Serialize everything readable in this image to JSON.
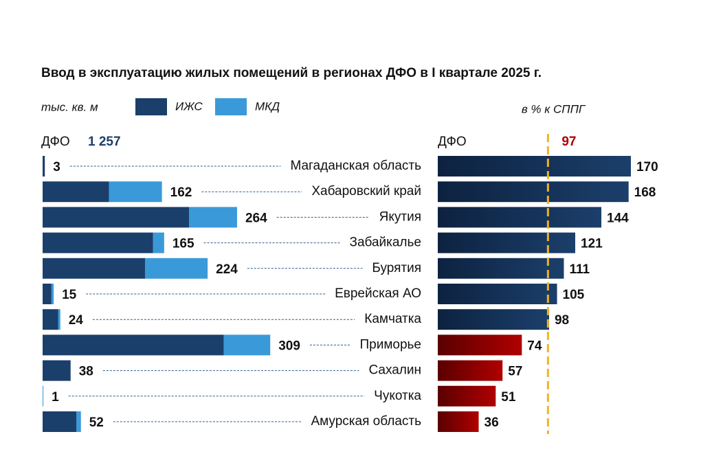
{
  "chart_data": [
    {
      "type": "stacked-bar",
      "title": "Ввод в эксплуатацию жилых помещений в регионах ДФО в I квартале 2025 г.",
      "unit": "тыс. кв. м",
      "total_name": "ДФО",
      "total": {
        "value": 1257,
        "label": "1 257"
      },
      "categories": [
        "Магаданская область",
        "Хабаровский край",
        "Якутия",
        "Забайкалье",
        "Бурятия",
        "Еврейская АО",
        "Камчатка",
        "Приморье",
        "Сахалин",
        "Чукотка",
        "Амурская область"
      ],
      "series": [
        {
          "name": "ИЖС",
          "color": "#1b3f6b",
          "values": [
            3,
            90,
            199,
            150,
            139,
            12,
            21,
            246,
            38,
            0,
            46
          ]
        },
        {
          "name": "МКД",
          "color": "#3a9ad9",
          "values": [
            0,
            72,
            65,
            15,
            85,
            3,
            3,
            63,
            0,
            1,
            6
          ]
        }
      ],
      "totals": [
        3,
        162,
        264,
        165,
        224,
        15,
        24,
        309,
        38,
        1,
        52
      ],
      "xlim": [
        0,
        320
      ]
    },
    {
      "type": "bar",
      "subtitle": "в % к СППГ",
      "total_name": "ДФО",
      "reference": 97,
      "reference_color": "#f0b323",
      "values": [
        170,
        168,
        144,
        121,
        111,
        105,
        98,
        74,
        57,
        51,
        36
      ],
      "above_color": "#1b3f6b",
      "below_color": "#b00000",
      "xlim": [
        0,
        180
      ]
    }
  ]
}
